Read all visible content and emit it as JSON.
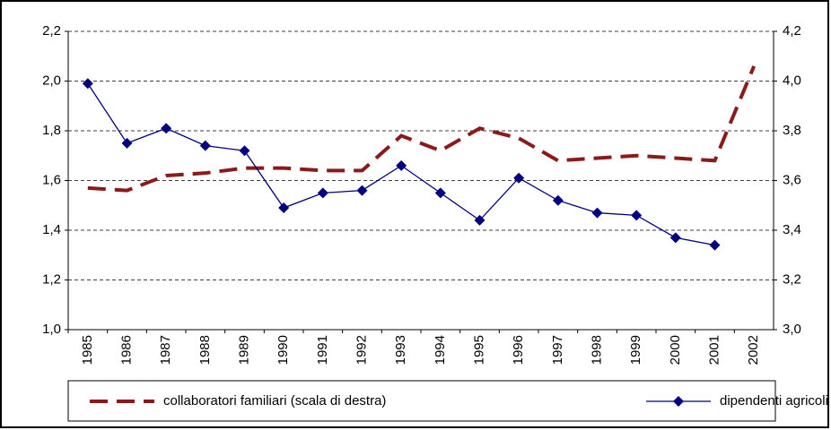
{
  "chart_data": {
    "type": "line",
    "categories": [
      "1985",
      "1986",
      "1987",
      "1988",
      "1989",
      "1990",
      "1991",
      "1992",
      "1993",
      "1994",
      "1995",
      "1996",
      "1997",
      "1998",
      "1999",
      "2000",
      "2001",
      "2002"
    ],
    "series": [
      {
        "name": "collaboratori familiari (scala di destra)",
        "color": "#8b1a1a",
        "axis": "y2",
        "dashed": true,
        "values": [
          3.57,
          3.56,
          3.62,
          3.63,
          3.65,
          3.65,
          3.64,
          3.64,
          3.78,
          3.72,
          3.81,
          3.77,
          3.68,
          3.69,
          3.7,
          3.69,
          3.68,
          4.06
        ]
      },
      {
        "name": "dipendenti agricoli",
        "color": "#000080",
        "marker": "diamond",
        "values": [
          1.99,
          1.75,
          1.81,
          1.74,
          1.72,
          1.49,
          1.55,
          1.56,
          1.66,
          1.55,
          1.44,
          1.61,
          1.52,
          1.47,
          1.46,
          1.37,
          1.34,
          null
        ]
      }
    ],
    "ylim": [
      1.0,
      2.2
    ],
    "yticks": [
      {
        "value": 1.0,
        "label": "1,0"
      },
      {
        "value": 1.2,
        "label": "1,2"
      },
      {
        "value": 1.4,
        "label": "1,4"
      },
      {
        "value": 1.6,
        "label": "1,6"
      },
      {
        "value": 1.8,
        "label": "1,8"
      },
      {
        "value": 2.0,
        "label": "2,0"
      },
      {
        "value": 2.2,
        "label": "2,2"
      }
    ],
    "y2lim": [
      3.0,
      4.2
    ],
    "y2ticks": [
      {
        "value": 3.0,
        "label": "3,0"
      },
      {
        "value": 3.2,
        "label": "3,2"
      },
      {
        "value": 3.4,
        "label": "3,4"
      },
      {
        "value": 3.6,
        "label": "3,6"
      },
      {
        "value": 3.8,
        "label": "3,8"
      },
      {
        "value": 4.0,
        "label": "4,0"
      },
      {
        "value": 4.2,
        "label": "4,2"
      }
    ],
    "grid": true,
    "legend": "bottom"
  }
}
